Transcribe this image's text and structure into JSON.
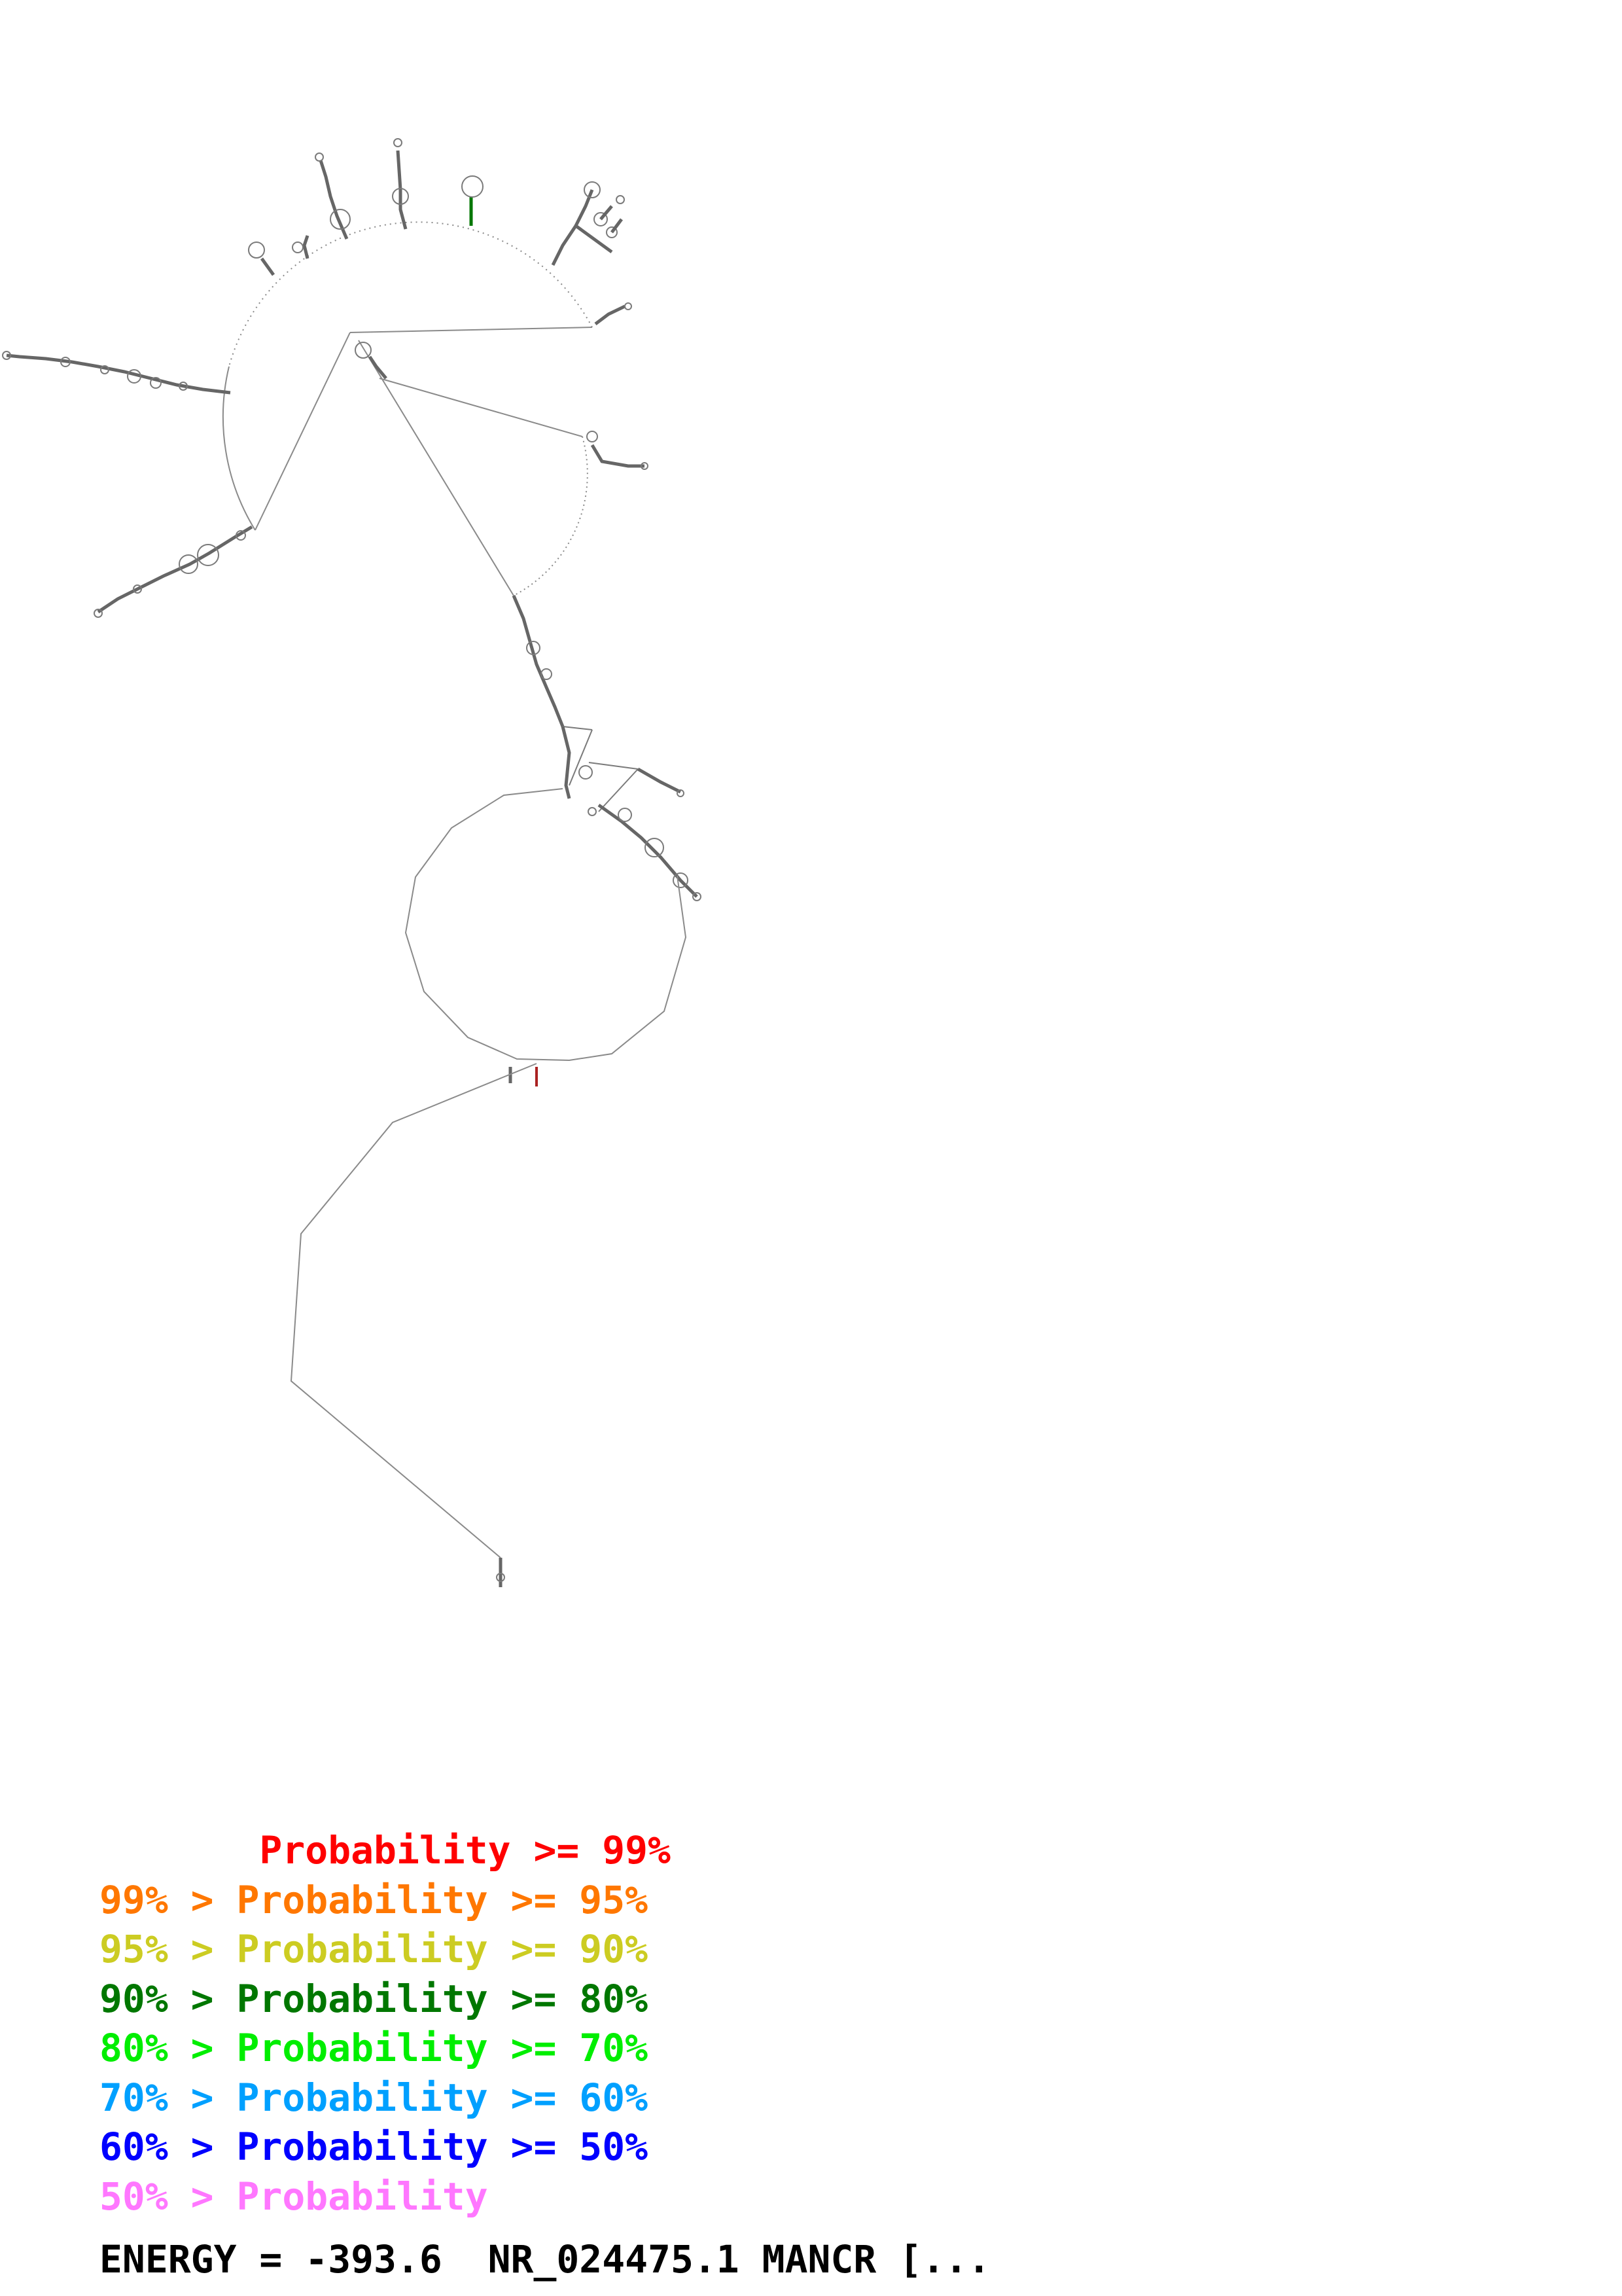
{
  "diagram": {
    "type": "rna-secondary-structure",
    "colors": {
      "backbone": "#8a8a8a",
      "pairs": [
        "#ff0000",
        "#ff7700",
        "#cccc22",
        "#007700",
        "#00ee00",
        "#00a0ff",
        "#0000ff",
        "#ff77ff"
      ]
    }
  },
  "legend": {
    "rows": [
      {
        "text": "       Probability >= 99%",
        "color": "#ff0000"
      },
      {
        "text": "99% > Probability >= 95%",
        "color": "#ff7700"
      },
      {
        "text": "95% > Probability >= 90%",
        "color": "#cccc22"
      },
      {
        "text": "90% > Probability >= 80%",
        "color": "#007700"
      },
      {
        "text": "80% > Probability >= 70%",
        "color": "#00ee00"
      },
      {
        "text": "70% > Probability >= 60%",
        "color": "#00a0ff"
      },
      {
        "text": "60% > Probability >= 50%",
        "color": "#0000ff"
      },
      {
        "text": "50% > Probability",
        "color": "#ff77ff"
      }
    ]
  },
  "footer": {
    "text": "ENERGY = -393.6  NR_024475.1 MANCR [..."
  }
}
